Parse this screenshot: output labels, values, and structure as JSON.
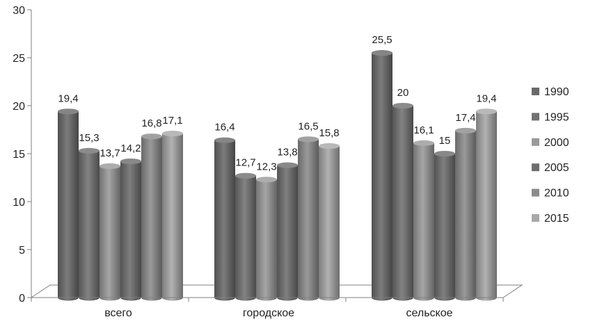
{
  "chart_data": {
    "type": "bar",
    "categories": [
      "всего",
      "городское",
      "сельское"
    ],
    "series": [
      {
        "name": "1990",
        "values": [
          19.4,
          16.4,
          25.5
        ],
        "labels": [
          "19,4",
          "16,4",
          "25,5"
        ],
        "color": "#6a6a6a"
      },
      {
        "name": "1995",
        "values": [
          15.3,
          12.7,
          20.0
        ],
        "labels": [
          "15,3",
          "12,7",
          "20"
        ],
        "color": "#727272"
      },
      {
        "name": "2000",
        "values": [
          13.7,
          12.3,
          16.1
        ],
        "labels": [
          "13,7",
          "12,3",
          "16,1"
        ],
        "color": "#9a9a9a"
      },
      {
        "name": "2005",
        "values": [
          14.2,
          13.8,
          15.0
        ],
        "labels": [
          "14,2",
          "13,8",
          "15"
        ],
        "color": "#6e6e6e"
      },
      {
        "name": "2010",
        "values": [
          16.8,
          16.5,
          17.4
        ],
        "labels": [
          "16,8",
          "16,5",
          "17,4"
        ],
        "color": "#8c8c8c"
      },
      {
        "name": "2015",
        "values": [
          17.1,
          15.8,
          19.4
        ],
        "labels": [
          "17,1",
          "15,8",
          "19,4"
        ],
        "color": "#a8a8a8"
      }
    ],
    "yticks": [
      "0",
      "5",
      "10",
      "15",
      "20",
      "25",
      "30"
    ],
    "ylim": [
      0,
      30
    ],
    "title": "",
    "xlabel": "",
    "ylabel": "",
    "legend_position": "right",
    "grid": false,
    "style": "3d-cylinder"
  }
}
